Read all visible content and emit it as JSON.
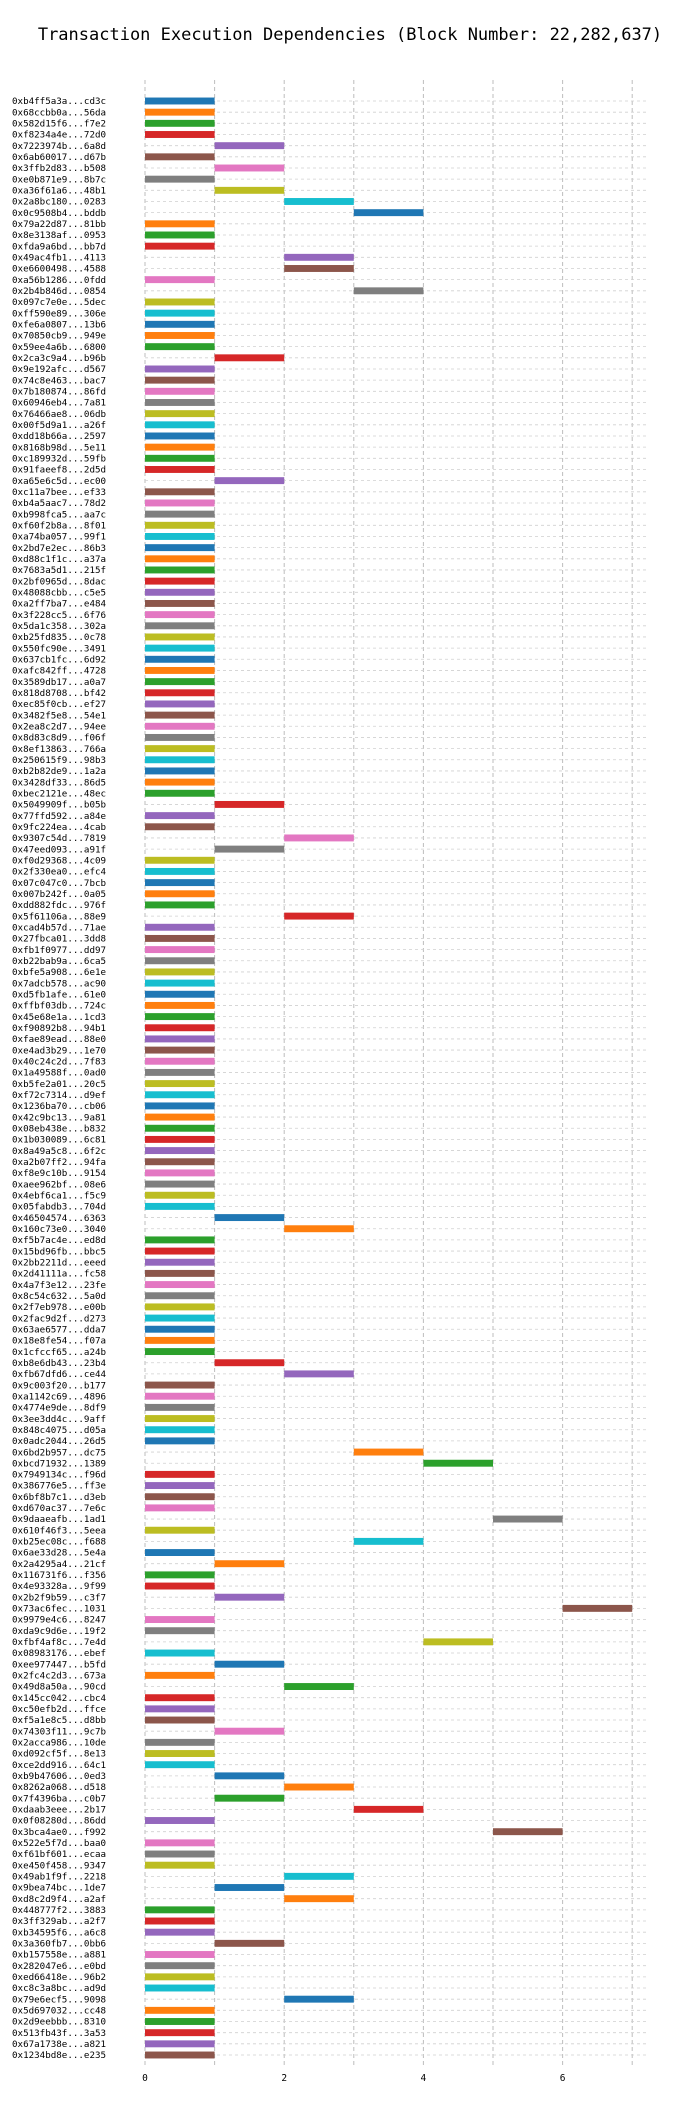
{
  "chart_data": {
    "type": "bar",
    "orientation": "horizontal-gantt",
    "title": "Transaction Execution Dependencies (Block Number: 22,282,637)",
    "xlabel": "",
    "ylabel": "",
    "xlim": [
      0,
      7.2
    ],
    "xticks": [
      0,
      2,
      4,
      6
    ],
    "grid": true,
    "grid_style": "dashed",
    "colors": [
      "#1f77b4",
      "#ff7f0e",
      "#2ca02c",
      "#d62728",
      "#9467bd",
      "#8c564b",
      "#e377c2",
      "#7f7f7f",
      "#bcbd22",
      "#17becf"
    ],
    "transactions": [
      {
        "label": "0xb4ff5a3a...cd3c",
        "start": 0,
        "end": 1
      },
      {
        "label": "0x68ccbb0a...56da",
        "start": 0,
        "end": 1
      },
      {
        "label": "0x582d15f6...f7e2",
        "start": 0,
        "end": 1
      },
      {
        "label": "0xf8234a4e...72d0",
        "start": 0,
        "end": 1
      },
      {
        "label": "0x7223974b...6a8d",
        "start": 1,
        "end": 2
      },
      {
        "label": "0x6ab60017...d67b",
        "start": 0,
        "end": 1
      },
      {
        "label": "0x3ffb2d83...b508",
        "start": 1,
        "end": 2
      },
      {
        "label": "0xe0b871e9...8b7c",
        "start": 0,
        "end": 1
      },
      {
        "label": "0xa36f61a6...48b1",
        "start": 1,
        "end": 2
      },
      {
        "label": "0x2a8bc180...0283",
        "start": 2,
        "end": 3
      },
      {
        "label": "0x0c9508b4...bddb",
        "start": 3,
        "end": 4
      },
      {
        "label": "0x79a22d87...81bb",
        "start": 0,
        "end": 1
      },
      {
        "label": "0x8e3138af...0953",
        "start": 0,
        "end": 1
      },
      {
        "label": "0xfda9a6bd...bb7d",
        "start": 0,
        "end": 1
      },
      {
        "label": "0x49ac4fb1...4113",
        "start": 2,
        "end": 3
      },
      {
        "label": "0xe6600498...4588",
        "start": 2,
        "end": 3
      },
      {
        "label": "0xa56b1286...0fdd",
        "start": 0,
        "end": 1
      },
      {
        "label": "0x2b4b846d...0854",
        "start": 3,
        "end": 4
      },
      {
        "label": "0x097c7e0e...5dec",
        "start": 0,
        "end": 1
      },
      {
        "label": "0xff590e89...306e",
        "start": 0,
        "end": 1
      },
      {
        "label": "0xfe6a0807...13b6",
        "start": 0,
        "end": 1
      },
      {
        "label": "0x70850cb9...949e",
        "start": 0,
        "end": 1
      },
      {
        "label": "0x59ee4a6b...6800",
        "start": 0,
        "end": 1
      },
      {
        "label": "0x2ca3c9a4...b96b",
        "start": 1,
        "end": 2
      },
      {
        "label": "0x9e192afc...d567",
        "start": 0,
        "end": 1
      },
      {
        "label": "0x74c8e463...bac7",
        "start": 0,
        "end": 1
      },
      {
        "label": "0x7b180874...86fd",
        "start": 0,
        "end": 1
      },
      {
        "label": "0x60946eb4...7a81",
        "start": 0,
        "end": 1
      },
      {
        "label": "0x76466ae8...06db",
        "start": 0,
        "end": 1
      },
      {
        "label": "0x00f5d9a1...a26f",
        "start": 0,
        "end": 1
      },
      {
        "label": "0xdd18b66a...2597",
        "start": 0,
        "end": 1
      },
      {
        "label": "0x8168b98d...5e11",
        "start": 0,
        "end": 1
      },
      {
        "label": "0xc189932d...59fb",
        "start": 0,
        "end": 1
      },
      {
        "label": "0x91faeef8...2d5d",
        "start": 0,
        "end": 1
      },
      {
        "label": "0xa65e6c5d...ec00",
        "start": 1,
        "end": 2
      },
      {
        "label": "0xc11a7bee...ef33",
        "start": 0,
        "end": 1
      },
      {
        "label": "0xb4a5aac7...78d2",
        "start": 0,
        "end": 1
      },
      {
        "label": "0xb998fca5...aa7c",
        "start": 0,
        "end": 1
      },
      {
        "label": "0xf60f2b8a...8f01",
        "start": 0,
        "end": 1
      },
      {
        "label": "0xa74ba057...99f1",
        "start": 0,
        "end": 1
      },
      {
        "label": "0x2bd7e2ec...86b3",
        "start": 0,
        "end": 1
      },
      {
        "label": "0xd88c1f1c...a37a",
        "start": 0,
        "end": 1
      },
      {
        "label": "0x7683a5d1...215f",
        "start": 0,
        "end": 1
      },
      {
        "label": "0x2bf0965d...8dac",
        "start": 0,
        "end": 1
      },
      {
        "label": "0x48088cbb...c5e5",
        "start": 0,
        "end": 1
      },
      {
        "label": "0xa2ff7ba7...e484",
        "start": 0,
        "end": 1
      },
      {
        "label": "0x3f228cc5...6f76",
        "start": 0,
        "end": 1
      },
      {
        "label": "0x5da1c358...302a",
        "start": 0,
        "end": 1
      },
      {
        "label": "0xb25fd835...0c78",
        "start": 0,
        "end": 1
      },
      {
        "label": "0x550fc90e...3491",
        "start": 0,
        "end": 1
      },
      {
        "label": "0x637cb1fc...6d92",
        "start": 0,
        "end": 1
      },
      {
        "label": "0xafc842ff...4728",
        "start": 0,
        "end": 1
      },
      {
        "label": "0x3589db17...a0a7",
        "start": 0,
        "end": 1
      },
      {
        "label": "0x818d8708...bf42",
        "start": 0,
        "end": 1
      },
      {
        "label": "0xec85f0cb...ef27",
        "start": 0,
        "end": 1
      },
      {
        "label": "0x3482f5e8...54e1",
        "start": 0,
        "end": 1
      },
      {
        "label": "0x2ea8c2d7...94ee",
        "start": 0,
        "end": 1
      },
      {
        "label": "0x8d83c8d9...f06f",
        "start": 0,
        "end": 1
      },
      {
        "label": "0x8ef13863...766a",
        "start": 0,
        "end": 1
      },
      {
        "label": "0x250615f9...98b3",
        "start": 0,
        "end": 1
      },
      {
        "label": "0xb2b82de9...1a2a",
        "start": 0,
        "end": 1
      },
      {
        "label": "0x3428df33...86d5",
        "start": 0,
        "end": 1
      },
      {
        "label": "0xbec2121e...48ec",
        "start": 0,
        "end": 1
      },
      {
        "label": "0x5049909f...b05b",
        "start": 1,
        "end": 2
      },
      {
        "label": "0x77ffd592...a84e",
        "start": 0,
        "end": 1
      },
      {
        "label": "0x9fc224ea...4cab",
        "start": 0,
        "end": 1
      },
      {
        "label": "0x9307c54d...7819",
        "start": 2,
        "end": 3
      },
      {
        "label": "0x47eed093...a91f",
        "start": 1,
        "end": 2
      },
      {
        "label": "0xf0d29368...4c09",
        "start": 0,
        "end": 1
      },
      {
        "label": "0x2f330ea0...efc4",
        "start": 0,
        "end": 1
      },
      {
        "label": "0x07c047c0...7bcb",
        "start": 0,
        "end": 1
      },
      {
        "label": "0x007b242f...0a05",
        "start": 0,
        "end": 1
      },
      {
        "label": "0xdd882fdc...976f",
        "start": 0,
        "end": 1
      },
      {
        "label": "0x5f61106a...88e9",
        "start": 2,
        "end": 3
      },
      {
        "label": "0xcad4b57d...71ae",
        "start": 0,
        "end": 1
      },
      {
        "label": "0x27fbca01...3dd8",
        "start": 0,
        "end": 1
      },
      {
        "label": "0xfb1f0977...dd97",
        "start": 0,
        "end": 1
      },
      {
        "label": "0xb22bab9a...6ca5",
        "start": 0,
        "end": 1
      },
      {
        "label": "0xbfe5a908...6e1e",
        "start": 0,
        "end": 1
      },
      {
        "label": "0x7adcb578...ac90",
        "start": 0,
        "end": 1
      },
      {
        "label": "0xd5fb1afe...61e0",
        "start": 0,
        "end": 1
      },
      {
        "label": "0xffbf03db...724c",
        "start": 0,
        "end": 1
      },
      {
        "label": "0x45e68e1a...1cd3",
        "start": 0,
        "end": 1
      },
      {
        "label": "0xf90892b8...94b1",
        "start": 0,
        "end": 1
      },
      {
        "label": "0xfae89ead...88e0",
        "start": 0,
        "end": 1
      },
      {
        "label": "0xe4ad3b29...1e70",
        "start": 0,
        "end": 1
      },
      {
        "label": "0x40c24c2d...7f83",
        "start": 0,
        "end": 1
      },
      {
        "label": "0x1a49588f...0ad0",
        "start": 0,
        "end": 1
      },
      {
        "label": "0xb5fe2a01...20c5",
        "start": 0,
        "end": 1
      },
      {
        "label": "0xf72c7314...d9ef",
        "start": 0,
        "end": 1
      },
      {
        "label": "0x1236ba70...cb06",
        "start": 0,
        "end": 1
      },
      {
        "label": "0x42c9bc13...9a81",
        "start": 0,
        "end": 1
      },
      {
        "label": "0x08eb438e...b832",
        "start": 0,
        "end": 1
      },
      {
        "label": "0x1b030089...6c81",
        "start": 0,
        "end": 1
      },
      {
        "label": "0x8a49a5c8...6f2c",
        "start": 0,
        "end": 1
      },
      {
        "label": "0xa2b07ff2...94fa",
        "start": 0,
        "end": 1
      },
      {
        "label": "0xf8e9c10b...9154",
        "start": 0,
        "end": 1
      },
      {
        "label": "0xaee962bf...08e6",
        "start": 0,
        "end": 1
      },
      {
        "label": "0x4ebf6ca1...f5c9",
        "start": 0,
        "end": 1
      },
      {
        "label": "0x05fabdb3...704d",
        "start": 0,
        "end": 1
      },
      {
        "label": "0x46504574...6363",
        "start": 1,
        "end": 2
      },
      {
        "label": "0x160c73e0...3040",
        "start": 2,
        "end": 3
      },
      {
        "label": "0xf5b7ac4e...ed8d",
        "start": 0,
        "end": 1
      },
      {
        "label": "0x15bd96fb...bbc5",
        "start": 0,
        "end": 1
      },
      {
        "label": "0x2bb2211d...eeed",
        "start": 0,
        "end": 1
      },
      {
        "label": "0x2d41111a...fc58",
        "start": 0,
        "end": 1
      },
      {
        "label": "0x4a7f3e12...23fe",
        "start": 0,
        "end": 1
      },
      {
        "label": "0x8c54c632...5a0d",
        "start": 0,
        "end": 1
      },
      {
        "label": "0x2f7eb978...e00b",
        "start": 0,
        "end": 1
      },
      {
        "label": "0x2fac9d2f...d273",
        "start": 0,
        "end": 1
      },
      {
        "label": "0x63ae6577...dda7",
        "start": 0,
        "end": 1
      },
      {
        "label": "0x18e8fe54...f07a",
        "start": 0,
        "end": 1
      },
      {
        "label": "0x1cfccf65...a24b",
        "start": 0,
        "end": 1
      },
      {
        "label": "0xb8e6db43...23b4",
        "start": 1,
        "end": 2
      },
      {
        "label": "0xfb67dfd6...ce44",
        "start": 2,
        "end": 3
      },
      {
        "label": "0x9c003f20...b177",
        "start": 0,
        "end": 1
      },
      {
        "label": "0xa1142c69...4896",
        "start": 0,
        "end": 1
      },
      {
        "label": "0x4774e9de...8df9",
        "start": 0,
        "end": 1
      },
      {
        "label": "0x3ee3dd4c...9aff",
        "start": 0,
        "end": 1
      },
      {
        "label": "0x848c4075...d05a",
        "start": 0,
        "end": 1
      },
      {
        "label": "0x0adc2044...26d5",
        "start": 0,
        "end": 1
      },
      {
        "label": "0x6bd2b957...dc75",
        "start": 3,
        "end": 4
      },
      {
        "label": "0xbcd71932...1389",
        "start": 4,
        "end": 5
      },
      {
        "label": "0x7949134c...f96d",
        "start": 0,
        "end": 1
      },
      {
        "label": "0x386776e5...ff3e",
        "start": 0,
        "end": 1
      },
      {
        "label": "0x6bf8b7c1...d3eb",
        "start": 0,
        "end": 1
      },
      {
        "label": "0xd670ac37...7e6c",
        "start": 0,
        "end": 1
      },
      {
        "label": "0x9daaeafb...1ad1",
        "start": 5,
        "end": 6
      },
      {
        "label": "0x610f46f3...5eea",
        "start": 0,
        "end": 1
      },
      {
        "label": "0xb25ec08c...f688",
        "start": 3,
        "end": 4
      },
      {
        "label": "0x6ae33d28...5e4a",
        "start": 0,
        "end": 1
      },
      {
        "label": "0x2a4295a4...21cf",
        "start": 1,
        "end": 2
      },
      {
        "label": "0x116731f6...f356",
        "start": 0,
        "end": 1
      },
      {
        "label": "0x4e93328a...9f99",
        "start": 0,
        "end": 1
      },
      {
        "label": "0x2b2f9b59...c3f7",
        "start": 1,
        "end": 2
      },
      {
        "label": "0x73ac6fec...1031",
        "start": 6,
        "end": 7
      },
      {
        "label": "0x9979e4c6...8247",
        "start": 0,
        "end": 1
      },
      {
        "label": "0xda9c9d6e...19f2",
        "start": 0,
        "end": 1
      },
      {
        "label": "0xfbf4af8c...7e4d",
        "start": 4,
        "end": 5
      },
      {
        "label": "0x08983176...ebef",
        "start": 0,
        "end": 1
      },
      {
        "label": "0xee977447...b5fd",
        "start": 1,
        "end": 2
      },
      {
        "label": "0x2fc4c2d3...673a",
        "start": 0,
        "end": 1
      },
      {
        "label": "0x49d8a50a...90cd",
        "start": 2,
        "end": 3
      },
      {
        "label": "0x145cc042...cbc4",
        "start": 0,
        "end": 1
      },
      {
        "label": "0xc50efb2d...ffce",
        "start": 0,
        "end": 1
      },
      {
        "label": "0xf5a1e8c5...d8bb",
        "start": 0,
        "end": 1
      },
      {
        "label": "0x74303f11...9c7b",
        "start": 1,
        "end": 2
      },
      {
        "label": "0x2acca986...10de",
        "start": 0,
        "end": 1
      },
      {
        "label": "0xd092cf5f...8e13",
        "start": 0,
        "end": 1
      },
      {
        "label": "0xce2dd916...64c1",
        "start": 0,
        "end": 1
      },
      {
        "label": "0xb9b47606...0ed3",
        "start": 1,
        "end": 2
      },
      {
        "label": "0x8262a068...d518",
        "start": 2,
        "end": 3
      },
      {
        "label": "0x7f4396ba...c0b7",
        "start": 1,
        "end": 2
      },
      {
        "label": "0xdaab3eee...2b17",
        "start": 3,
        "end": 4
      },
      {
        "label": "0x0f08280d...86dd",
        "start": 0,
        "end": 1
      },
      {
        "label": "0x3bca4ae0...f992",
        "start": 5,
        "end": 6
      },
      {
        "label": "0x522e5f7d...baa0",
        "start": 0,
        "end": 1
      },
      {
        "label": "0xf61bf601...ecaa",
        "start": 0,
        "end": 1
      },
      {
        "label": "0xe450f458...9347",
        "start": 0,
        "end": 1
      },
      {
        "label": "0x49ab1f9f...2218",
        "start": 2,
        "end": 3
      },
      {
        "label": "0x9bea74bc...1de7",
        "start": 1,
        "end": 2
      },
      {
        "label": "0xd8c2d9f4...a2af",
        "start": 2,
        "end": 3
      },
      {
        "label": "0x448777f2...3883",
        "start": 0,
        "end": 1
      },
      {
        "label": "0x3ff329ab...a2f7",
        "start": 0,
        "end": 1
      },
      {
        "label": "0xb34595f6...a6c8",
        "start": 0,
        "end": 1
      },
      {
        "label": "0x3a360fb7...0bb6",
        "start": 1,
        "end": 2
      },
      {
        "label": "0xb157558e...a881",
        "start": 0,
        "end": 1
      },
      {
        "label": "0x282047e6...e0bd",
        "start": 0,
        "end": 1
      },
      {
        "label": "0xed66418e...96b2",
        "start": 0,
        "end": 1
      },
      {
        "label": "0xc8c3a8bc...ad9d",
        "start": 0,
        "end": 1
      },
      {
        "label": "0x79e6ecf5...9098",
        "start": 2,
        "end": 3
      },
      {
        "label": "0x5d697032...cc48",
        "start": 0,
        "end": 1
      },
      {
        "label": "0x2d9eebbb...8310",
        "start": 0,
        "end": 1
      },
      {
        "label": "0x513fb43f...3a53",
        "start": 0,
        "end": 1
      },
      {
        "label": "0x67a1738e...a821",
        "start": 0,
        "end": 1
      },
      {
        "label": "0x1234bd8e...e235",
        "start": 0,
        "end": 1
      }
    ]
  }
}
